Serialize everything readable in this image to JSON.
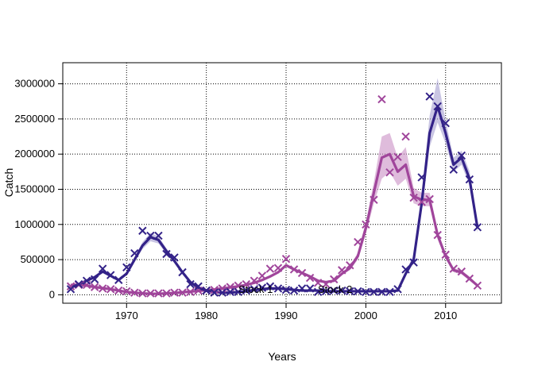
{
  "chart_data": {
    "type": "line",
    "title": "",
    "xlabel": "Years",
    "ylabel": "Catch",
    "xlim": [
      1962,
      2017
    ],
    "ylim": [
      -120000,
      3300000
    ],
    "grid": true,
    "x_ticks": [
      1970,
      1980,
      1990,
      2000,
      2010
    ],
    "x_tick_labels": [
      "1970",
      "1980",
      "1990",
      "2000",
      "2010"
    ],
    "y_ticks": [
      0,
      500000,
      1000000,
      1500000,
      2000000,
      2500000,
      3000000
    ],
    "y_tick_labels": [
      "0",
      "500000",
      "1000000",
      "1500000",
      "2000000",
      "2500000",
      "3000000"
    ],
    "annotations": [
      "Stock 1",
      "Stock 2"
    ],
    "series": [
      {
        "name": "Stock 1",
        "color": "#a0459b",
        "band_color": "#c98fc4",
        "x": [
          1963,
          1964,
          1965,
          1966,
          1967,
          1968,
          1969,
          1970,
          1971,
          1972,
          1973,
          1974,
          1975,
          1976,
          1977,
          1978,
          1979,
          1980,
          1981,
          1982,
          1983,
          1984,
          1985,
          1986,
          1987,
          1988,
          1989,
          1990,
          1991,
          1992,
          1993,
          1994,
          1995,
          1996,
          1997,
          1998,
          1999,
          2000,
          2001,
          2002,
          2003,
          2004,
          2005,
          2006,
          2007,
          2008,
          2009,
          2010,
          2011,
          2012,
          2013,
          2014
        ],
        "fit": [
          140000,
          140000,
          130000,
          110000,
          95000,
          80000,
          60000,
          40000,
          30000,
          20000,
          15000,
          15000,
          20000,
          25000,
          35000,
          45000,
          55000,
          65000,
          75000,
          90000,
          105000,
          120000,
          140000,
          170000,
          210000,
          260000,
          320000,
          420000,
          360000,
          310000,
          260000,
          200000,
          180000,
          200000,
          300000,
          380000,
          550000,
          950000,
          1450000,
          1950000,
          2000000,
          1750000,
          1850000,
          1400000,
          1350000,
          1350000,
          850000,
          550000,
          350000,
          320000,
          230000,
          130000
        ],
        "lower": [
          130000,
          130000,
          120000,
          100000,
          85000,
          70000,
          50000,
          35000,
          25000,
          15000,
          10000,
          10000,
          15000,
          20000,
          30000,
          40000,
          50000,
          60000,
          70000,
          85000,
          100000,
          115000,
          130000,
          160000,
          200000,
          245000,
          300000,
          400000,
          340000,
          290000,
          240000,
          185000,
          165000,
          185000,
          280000,
          350000,
          500000,
          860000,
          1300000,
          1650000,
          1750000,
          1550000,
          1650000,
          1300000,
          1260000,
          1260000,
          790000,
          510000,
          320000,
          290000,
          200000,
          110000
        ],
        "upper": [
          150000,
          150000,
          140000,
          120000,
          105000,
          90000,
          70000,
          45000,
          35000,
          25000,
          20000,
          20000,
          25000,
          30000,
          40000,
          50000,
          60000,
          70000,
          80000,
          95000,
          110000,
          125000,
          150000,
          180000,
          220000,
          275000,
          340000,
          440000,
          380000,
          330000,
          280000,
          215000,
          195000,
          215000,
          320000,
          410000,
          600000,
          1040000,
          1600000,
          2250000,
          2300000,
          1950000,
          2100000,
          1520000,
          1450000,
          1450000,
          910000,
          590000,
          380000,
          350000,
          260000,
          150000
        ],
        "observed": [
          120000,
          140000,
          140000,
          110000,
          90000,
          80000,
          60000,
          50000,
          30000,
          20000,
          20000,
          20000,
          20000,
          30000,
          30000,
          40000,
          60000,
          60000,
          70000,
          90000,
          110000,
          130000,
          150000,
          200000,
          270000,
          370000,
          380000,
          510000,
          360000,
          310000,
          240000,
          170000,
          150000,
          220000,
          350000,
          420000,
          750000,
          1000000,
          1350000,
          2780000,
          1740000,
          1960000,
          2250000,
          1380000,
          1320000,
          1360000,
          850000,
          570000,
          370000,
          330000,
          230000,
          130000
        ]
      },
      {
        "name": "Stock 2",
        "color": "#332288",
        "band_color": "#a59fd0",
        "x": [
          1963,
          1964,
          1965,
          1966,
          1967,
          1968,
          1969,
          1970,
          1971,
          1972,
          1973,
          1974,
          1975,
          1976,
          1977,
          1978,
          1979,
          1980,
          1981,
          1982,
          1983,
          1984,
          1985,
          1986,
          1987,
          1988,
          1989,
          1990,
          1991,
          1992,
          1993,
          1994,
          1995,
          1996,
          1997,
          1998,
          1999,
          2000,
          2001,
          2002,
          2003,
          2004,
          2005,
          2006,
          2007,
          2008,
          2009,
          2010,
          2011,
          2012,
          2013,
          2014
        ],
        "fit": [
          100000,
          150000,
          200000,
          250000,
          330000,
          270000,
          210000,
          300000,
          500000,
          700000,
          820000,
          780000,
          620000,
          480000,
          320000,
          180000,
          100000,
          60000,
          40000,
          30000,
          30000,
          40000,
          50000,
          70000,
          80000,
          90000,
          90000,
          80000,
          70000,
          60000,
          60000,
          60000,
          50000,
          50000,
          50000,
          50000,
          50000,
          50000,
          50000,
          50000,
          50000,
          60000,
          300000,
          500000,
          1300000,
          2300000,
          2680000,
          2300000,
          1850000,
          1950000,
          1650000,
          950000
        ],
        "lower": [
          90000,
          140000,
          190000,
          240000,
          320000,
          260000,
          200000,
          280000,
          470000,
          650000,
          760000,
          730000,
          580000,
          450000,
          300000,
          170000,
          90000,
          50000,
          30000,
          20000,
          20000,
          30000,
          40000,
          60000,
          70000,
          80000,
          80000,
          70000,
          60000,
          50000,
          50000,
          50000,
          40000,
          40000,
          40000,
          40000,
          40000,
          40000,
          40000,
          40000,
          40000,
          50000,
          270000,
          450000,
          1200000,
          2100000,
          2450000,
          2150000,
          1750000,
          1850000,
          1550000,
          880000
        ],
        "upper": [
          110000,
          160000,
          210000,
          260000,
          340000,
          280000,
          220000,
          320000,
          530000,
          750000,
          880000,
          830000,
          660000,
          510000,
          340000,
          190000,
          110000,
          70000,
          50000,
          40000,
          40000,
          50000,
          60000,
          80000,
          90000,
          100000,
          100000,
          90000,
          80000,
          70000,
          70000,
          70000,
          60000,
          60000,
          60000,
          60000,
          60000,
          60000,
          60000,
          60000,
          60000,
          70000,
          340000,
          560000,
          1420000,
          2550000,
          3080000,
          2480000,
          1950000,
          2050000,
          1760000,
          1020000
        ],
        "observed": [
          80000,
          150000,
          200000,
          220000,
          370000,
          280000,
          210000,
          390000,
          590000,
          910000,
          840000,
          840000,
          580000,
          530000,
          320000,
          150000,
          120000,
          60000,
          30000,
          30000,
          40000,
          40000,
          60000,
          80000,
          100000,
          120000,
          90000,
          70000,
          60000,
          90000,
          90000,
          40000,
          50000,
          60000,
          60000,
          50000,
          50000,
          40000,
          40000,
          40000,
          40000,
          80000,
          360000,
          460000,
          1670000,
          2820000,
          2680000,
          2440000,
          1780000,
          1980000,
          1640000,
          960000
        ]
      }
    ]
  }
}
